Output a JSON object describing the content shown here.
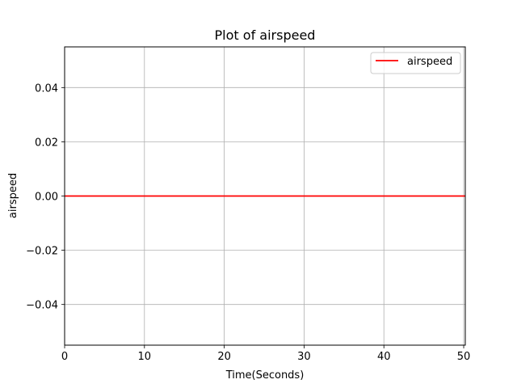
{
  "chart_data": {
    "type": "line",
    "title": "Plot of airspeed",
    "xlabel": "Time(Seconds)",
    "ylabel": "airspeed",
    "xlim": [
      0,
      50.2
    ],
    "ylim": [
      -0.055,
      0.055
    ],
    "grid": true,
    "legend_position": "top-right",
    "x_ticks": [
      0,
      10,
      20,
      30,
      40,
      50
    ],
    "x_tick_labels": [
      "0",
      "10",
      "20",
      "30",
      "40",
      "50"
    ],
    "y_ticks": [
      -0.04,
      -0.02,
      0.0,
      0.02,
      0.04
    ],
    "y_tick_labels": [
      "−0.04",
      "−0.02",
      "0.00",
      "0.02",
      "0.04"
    ],
    "series": [
      {
        "name": "airspeed",
        "color": "#ff0000",
        "x": [
          0,
          50.2
        ],
        "y": [
          0,
          0
        ]
      }
    ]
  }
}
